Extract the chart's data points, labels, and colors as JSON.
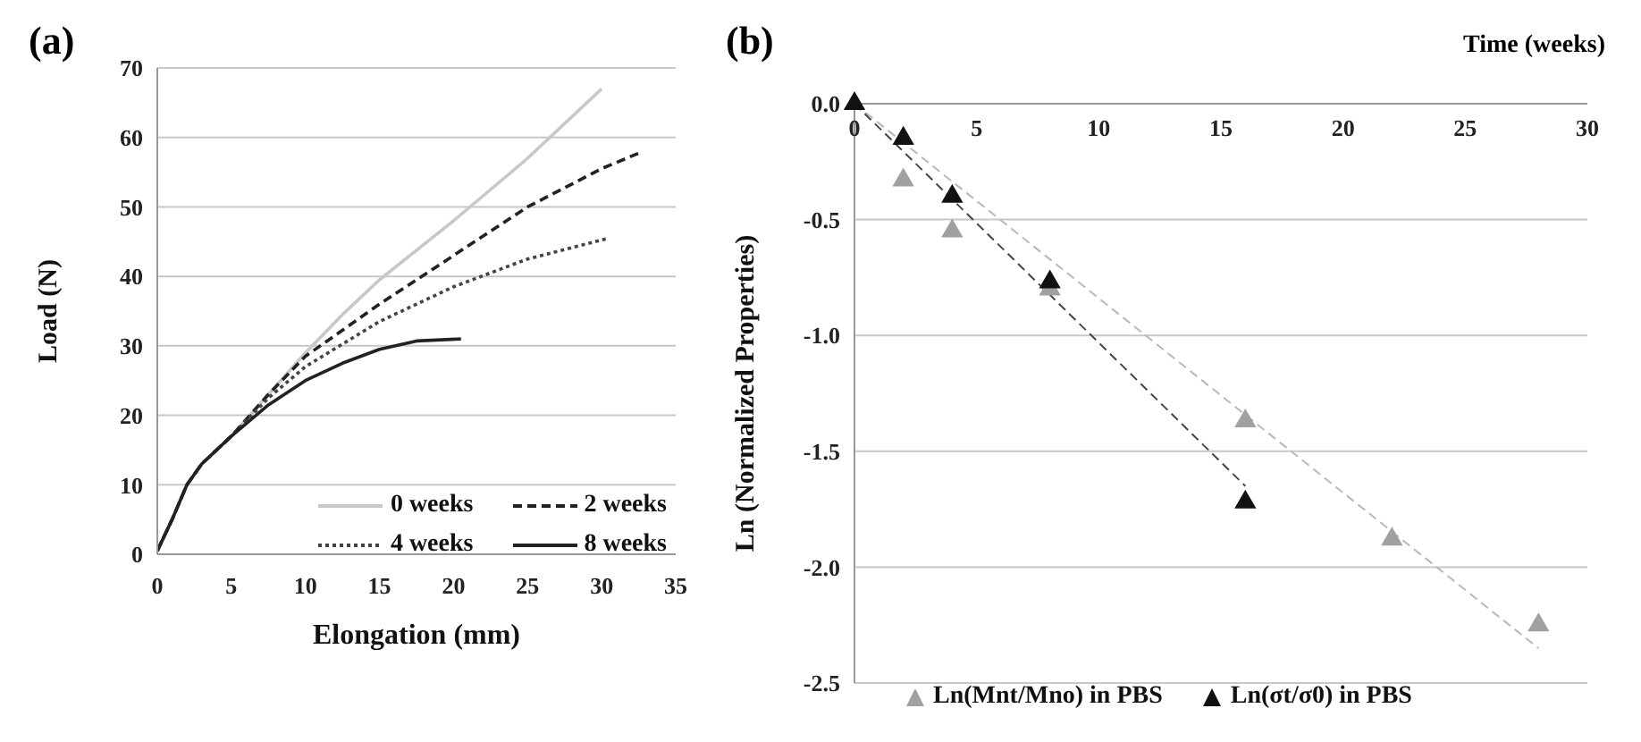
{
  "chart_data": [
    {
      "type": "line",
      "annotations": [
        "(a)"
      ],
      "xlabel": "Elongation (mm)",
      "ylabel": "Load (N)",
      "xlim": [
        0,
        35
      ],
      "xticks": [
        0,
        5,
        10,
        15,
        20,
        25,
        30,
        35
      ],
      "ylim": [
        0,
        70
      ],
      "yticks": [
        0,
        10,
        20,
        30,
        40,
        50,
        60,
        70
      ],
      "grid": "y",
      "legend": "bottom right",
      "marker": "none",
      "series": [
        {
          "name": "0 weeks",
          "color": "#c8c8c8",
          "line_style": "solid",
          "x": [
            0,
            1,
            2,
            3,
            5,
            7.5,
            10,
            12.5,
            15,
            20,
            25,
            30
          ],
          "values": [
            0.5,
            5,
            10,
            13,
            17,
            23,
            29,
            34.5,
            39.5,
            48,
            57,
            67
          ]
        },
        {
          "name": "2 weeks",
          "color": "#222222",
          "line_style": "dashed",
          "x": [
            0,
            1,
            2,
            3,
            5,
            7.5,
            10,
            15,
            20,
            25,
            30,
            32.8
          ],
          "values": [
            0.5,
            5,
            10,
            13,
            17,
            23,
            28.5,
            36,
            43,
            50,
            55.5,
            58
          ]
        },
        {
          "name": "4 weeks",
          "color": "#444444",
          "line_style": "dotted",
          "x": [
            0,
            1,
            2,
            3,
            5,
            7.5,
            10,
            15,
            20,
            25,
            30.5
          ],
          "values": [
            0.5,
            5,
            10,
            13,
            17,
            22.5,
            27,
            33.5,
            38.5,
            42.5,
            45.5
          ]
        },
        {
          "name": "8 weeks",
          "color": "#222222",
          "line_style": "solid",
          "x": [
            0,
            1,
            2,
            3,
            5,
            7.5,
            10,
            12.5,
            15,
            17.5,
            20.5
          ],
          "values": [
            0.5,
            5,
            10,
            13,
            17,
            21.5,
            25,
            27.5,
            29.5,
            30.7,
            31
          ]
        }
      ]
    },
    {
      "type": "scatter",
      "annotations": [
        "(b)"
      ],
      "xlabel": "Time (weeks)",
      "ylabel": "Ln (Normalized Properties)",
      "xlim": [
        0,
        30
      ],
      "xticks": [
        0,
        5,
        10,
        15,
        20,
        25,
        30
      ],
      "ylim": [
        -2.5,
        0
      ],
      "yticks": [
        {
          "value": 0,
          "label": "0.0"
        },
        -0.5,
        {
          "value": -1,
          "label": "-1.0"
        },
        -1.5,
        {
          "value": -2,
          "label": "-2.0"
        },
        -2.5
      ],
      "grid": "y",
      "legend": "bottom",
      "marker": "triangle",
      "series": [
        {
          "name": "Ln(Mnt/Mno) in PBS",
          "color": "#a0a0a0",
          "x": [
            2,
            4,
            8,
            16,
            22,
            28
          ],
          "values": [
            -0.33,
            -0.55,
            -0.8,
            -1.37,
            -1.88,
            -2.25
          ]
        },
        {
          "name": "Ln(σt/σ0) in PBS",
          "color": "#111111",
          "x": [
            0,
            2,
            4,
            8,
            16
          ],
          "values": [
            0,
            -0.15,
            -0.4,
            -0.77,
            -1.72
          ]
        },
        {
          "type": "line",
          "color": "#b8b8b8",
          "line_style": "dashed",
          "marker": "none",
          "x": [
            0,
            28
          ],
          "values": [
            0,
            -2.35
          ]
        },
        {
          "type": "line",
          "color": "#444444",
          "line_style": "dashed",
          "marker": "none",
          "x": [
            0,
            16
          ],
          "values": [
            0,
            -1.65
          ]
        }
      ]
    }
  ]
}
